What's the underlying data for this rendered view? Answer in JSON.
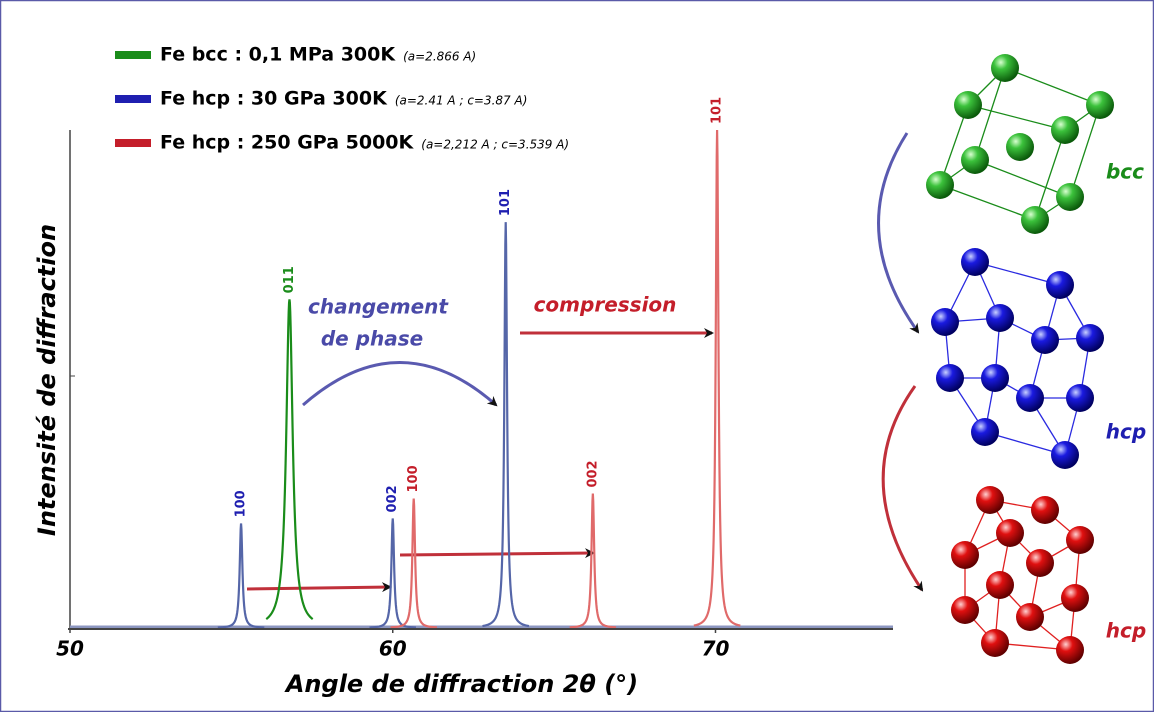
{
  "chart_data": {
    "type": "peaks",
    "x_label": "Angle de diffraction 2θ (°)",
    "y_label": "Intensité de diffraction",
    "xlim": [
      50,
      75.5
    ],
    "xticks": [
      50,
      60,
      70
    ],
    "ylim": [
      0,
      100
    ],
    "series": [
      {
        "name": "Fe bcc : 0,1 MPa 300K",
        "params": "(a=2.866 A)",
        "color": "#1a8c1a",
        "line_color": "#1a8c1a",
        "x": [
          56.8
        ],
        "values": [
          66
        ],
        "hkl": [
          "011"
        ]
      },
      {
        "name": "Fe hcp : 30 GPa 300K",
        "params": "(a=2.41 A ; c=3.87 A)",
        "color": "#1f1fb0",
        "line_color": "#5566a8",
        "x": [
          55.3,
          60.0,
          63.5
        ],
        "values": [
          21,
          22,
          81.5
        ],
        "hkl": [
          "100",
          "002",
          "101"
        ]
      },
      {
        "name": "Fe hcp : 250 GPa 5000K",
        "params": "(a=2,212 A ; c=3.539 A)",
        "color": "#c41e2a",
        "line_color": "#e06a6a",
        "x": [
          60.65,
          66.2,
          70.05
        ],
        "values": [
          26,
          27,
          100
        ],
        "hkl": [
          "100",
          "002",
          "101"
        ]
      }
    ],
    "annotations": {
      "phase_change": [
        "changement",
        "de phase"
      ],
      "compression": "compression"
    },
    "structures": [
      "bcc",
      "hcp",
      "hcp"
    ]
  }
}
